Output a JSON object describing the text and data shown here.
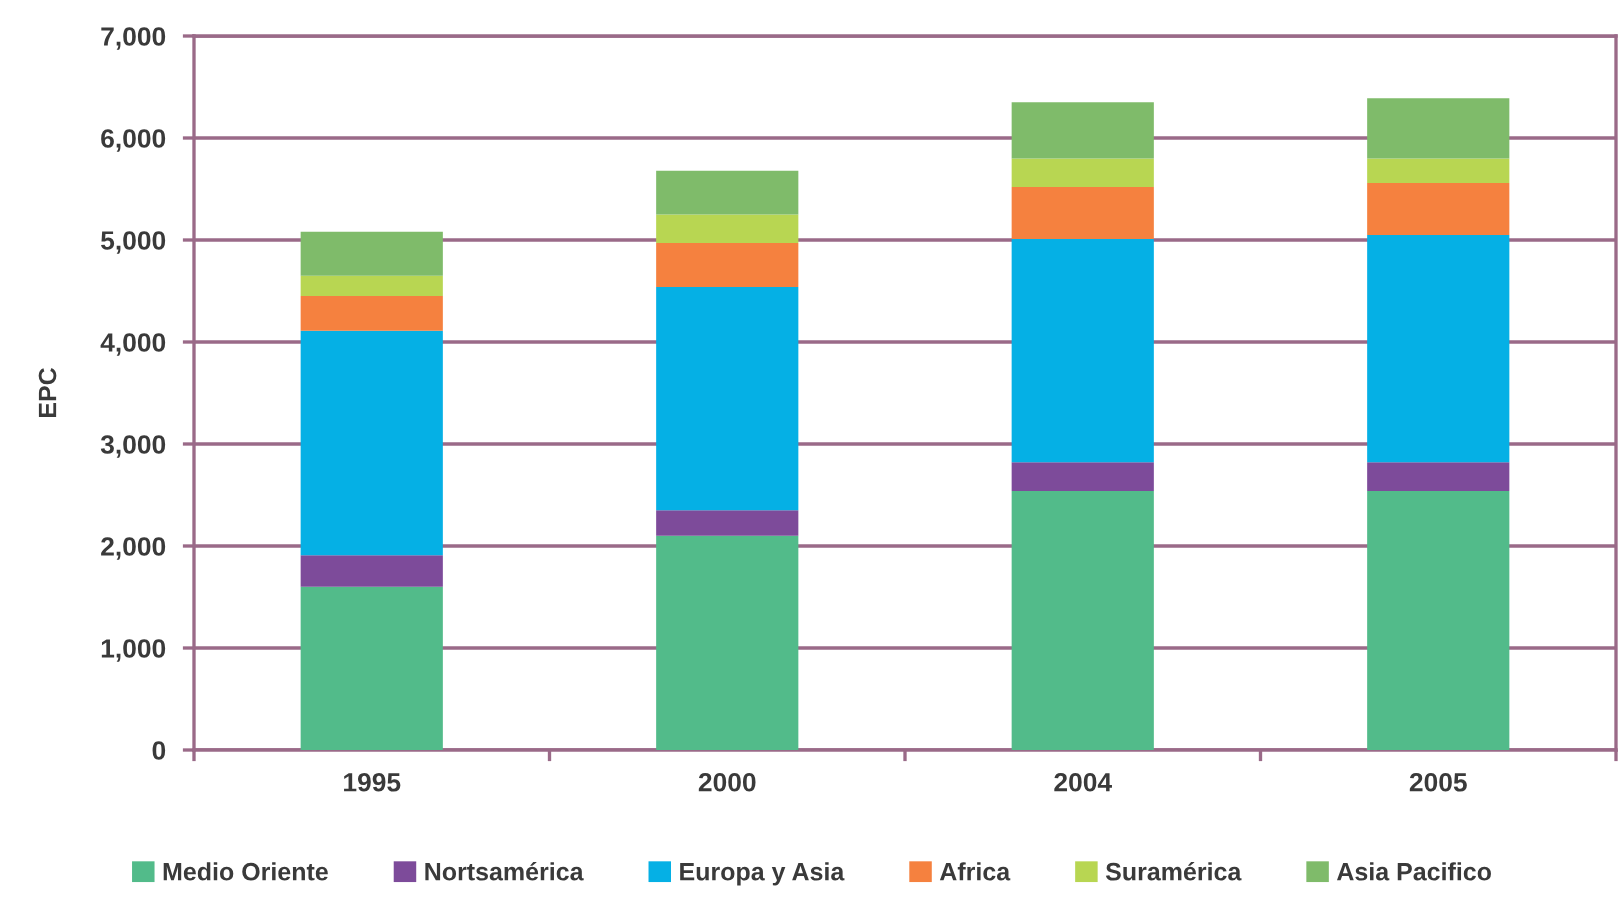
{
  "chart_data": {
    "type": "bar",
    "stacked": true,
    "ylabel": "EPC",
    "categories": [
      "1995",
      "2000",
      "2004",
      "2005"
    ],
    "series": [
      {
        "name": "Medio Oriente",
        "color": "#52bb8a",
        "values": [
          1600,
          2100,
          2540,
          2540
        ]
      },
      {
        "name": "Nortsamérica",
        "color": "#7d4b9a",
        "values": [
          310,
          250,
          280,
          280
        ]
      },
      {
        "name": "Europa y Asia",
        "color": "#05b0e5",
        "values": [
          2200,
          2190,
          2190,
          2230
        ]
      },
      {
        "name": "Africa",
        "color": "#f5813f",
        "values": [
          340,
          430,
          510,
          510
        ]
      },
      {
        "name": "Suramérica",
        "color": "#b8d652",
        "values": [
          200,
          280,
          280,
          240
        ]
      },
      {
        "name": "Asia Pacifico",
        "color": "#7fbb6a",
        "values": [
          430,
          430,
          550,
          590
        ]
      }
    ],
    "ylim": [
      0,
      7000
    ],
    "yticks": [
      0,
      {
        "value": 1000,
        "label": "1,000"
      },
      {
        "value": 2000,
        "label": "2,000"
      },
      {
        "value": 3000,
        "label": "3,000"
      },
      {
        "value": 4000,
        "label": "4,000"
      },
      {
        "value": 5000,
        "label": "5,000"
      },
      {
        "value": 6000,
        "label": "6,000"
      },
      {
        "value": 7000,
        "label": "7,000"
      }
    ],
    "grid": "y",
    "legend": "bottom"
  }
}
